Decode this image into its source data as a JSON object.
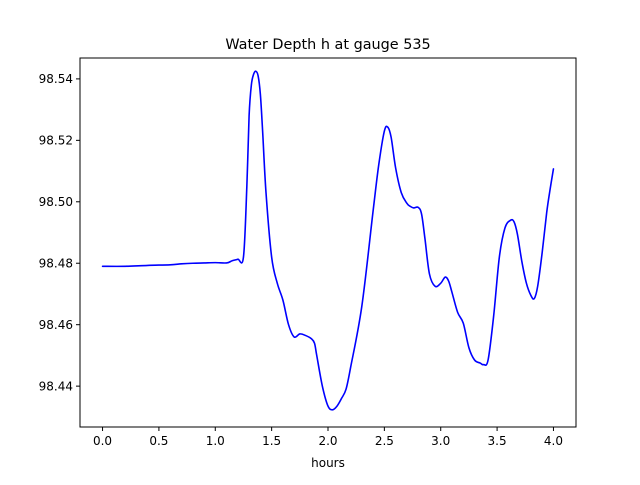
{
  "chart_data": {
    "type": "line",
    "title": "Water Depth h at gauge 535",
    "xlabel": "hours",
    "ylabel": "",
    "xlim": [
      -0.2,
      4.2
    ],
    "ylim": [
      98.4267,
      98.5468
    ],
    "xticks": [
      0.0,
      0.5,
      1.0,
      1.5,
      2.0,
      2.5,
      3.0,
      3.5,
      4.0
    ],
    "xtick_labels": [
      "0.0",
      "0.5",
      "1.0",
      "1.5",
      "2.0",
      "2.5",
      "3.0",
      "3.5",
      "4.0"
    ],
    "yticks": [
      98.44,
      98.46,
      98.48,
      98.5,
      98.52,
      98.54
    ],
    "ytick_labels": [
      "98.44",
      "98.46",
      "98.48",
      "98.50",
      "98.52",
      "98.54"
    ],
    "grid": false,
    "series": [
      {
        "name": "h",
        "color": "#0000ff",
        "x": [
          0.0,
          0.2,
          0.4,
          0.6,
          0.7,
          0.8,
          0.9,
          1.0,
          1.1,
          1.15,
          1.2,
          1.25,
          1.28,
          1.3,
          1.32,
          1.34,
          1.36,
          1.38,
          1.4,
          1.42,
          1.45,
          1.5,
          1.55,
          1.6,
          1.65,
          1.7,
          1.75,
          1.8,
          1.85,
          1.88,
          1.9,
          1.95,
          2.0,
          2.04,
          2.08,
          2.12,
          2.16,
          2.2,
          2.3,
          2.4,
          2.45,
          2.5,
          2.53,
          2.56,
          2.6,
          2.65,
          2.7,
          2.73,
          2.76,
          2.8,
          2.83,
          2.86,
          2.9,
          2.95,
          3.0,
          3.04,
          3.07,
          3.1,
          3.15,
          3.2,
          3.25,
          3.3,
          3.35,
          3.38,
          3.42,
          3.47,
          3.52,
          3.57,
          3.62,
          3.65,
          3.68,
          3.72,
          3.76,
          3.8,
          3.83,
          3.86,
          3.9,
          3.94,
          3.97,
          4.0
        ],
        "y": [
          98.479,
          98.479,
          98.4793,
          98.4795,
          98.4798,
          98.48,
          98.4801,
          98.4802,
          98.4801,
          98.4808,
          98.4813,
          98.482,
          98.505,
          98.528,
          98.538,
          98.5415,
          98.5425,
          98.541,
          98.535,
          98.523,
          98.503,
          98.482,
          98.4735,
          98.468,
          98.46,
          98.456,
          98.457,
          98.4565,
          98.4555,
          98.454,
          98.45,
          98.44,
          98.4335,
          98.4323,
          98.4335,
          98.436,
          98.439,
          98.446,
          98.466,
          98.497,
          98.512,
          98.523,
          98.5243,
          98.521,
          98.511,
          98.503,
          98.4995,
          98.4985,
          98.498,
          98.4982,
          98.496,
          98.488,
          98.4765,
          98.4725,
          98.4735,
          98.4755,
          98.4742,
          98.4705,
          98.464,
          98.4605,
          98.4525,
          98.4485,
          98.4475,
          98.447,
          98.4485,
          98.463,
          98.482,
          98.4915,
          98.494,
          98.4935,
          98.4895,
          98.4805,
          98.4735,
          98.4695,
          98.4685,
          98.4725,
          98.4835,
          98.4965,
          98.504,
          98.5107
        ]
      }
    ]
  }
}
